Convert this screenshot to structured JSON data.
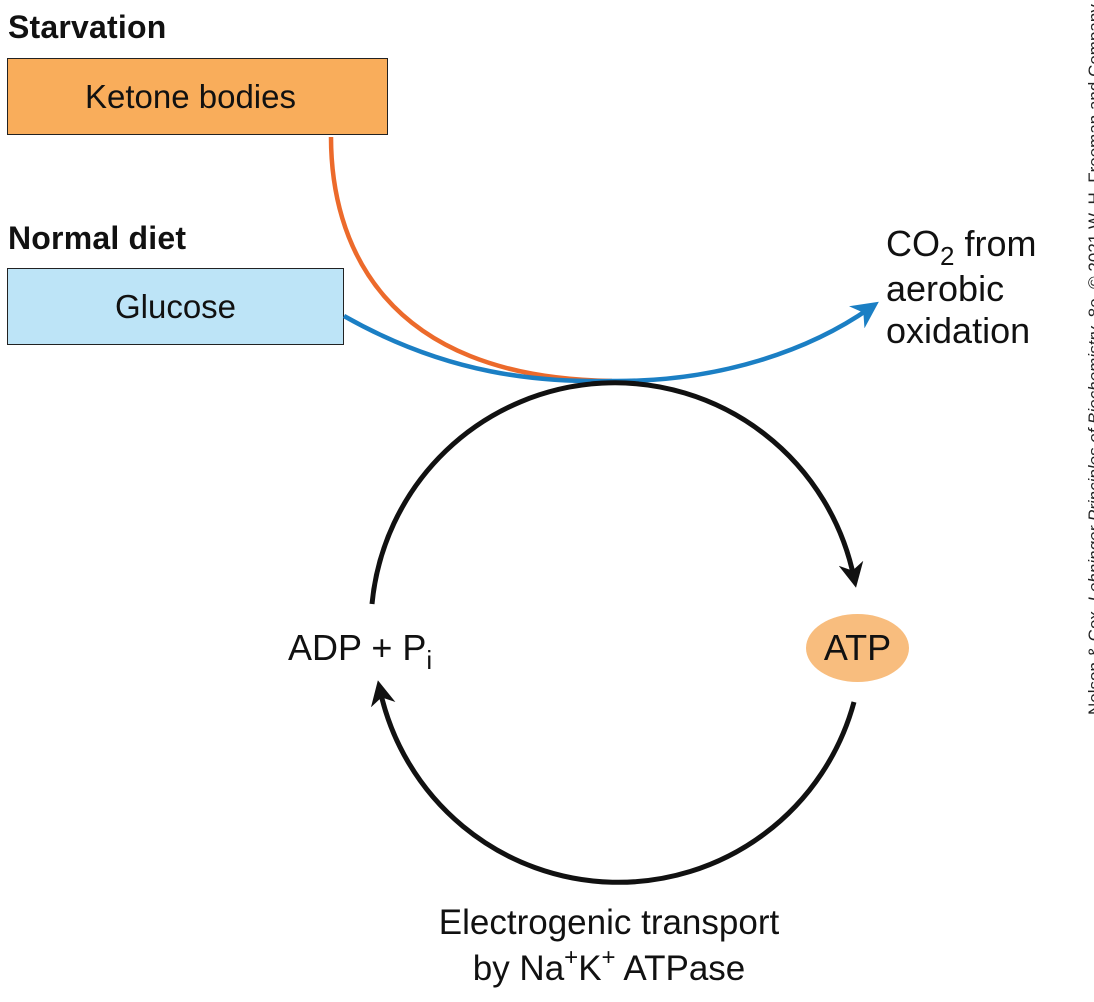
{
  "starvation": {
    "heading": "Starvation",
    "box_label": "Ketone bodies",
    "box_color": "#f9ad5b"
  },
  "normal_diet": {
    "heading": "Normal diet",
    "box_label": "Glucose",
    "box_color": "#bde4f7"
  },
  "product": {
    "co2": "CO",
    "co2_sub": "2",
    "co2_rest": "from",
    "line2": "aerobic",
    "line3": "oxidation"
  },
  "cycle": {
    "adp": "ADP + P",
    "adp_sub": "i",
    "atp": "ATP",
    "atp_color": "#f8bd7e",
    "process_line1": "Electrogenic transport",
    "process_line2_a": "by Na",
    "process_sup1": "+",
    "process_line2_b": "K",
    "process_sup2": "+",
    "process_line2_c": " ATPase"
  },
  "colors": {
    "ketone_arrow": "#ec6a2b",
    "glucose_arrow": "#1b7fc4",
    "cycle_arrow": "#111111"
  },
  "credit": {
    "authors": "Nelson & Cox, ",
    "book": "Lehninger Principles of Biochemistry",
    "rest": ", 8e, © 2021 W. H. Freeman and Company"
  }
}
